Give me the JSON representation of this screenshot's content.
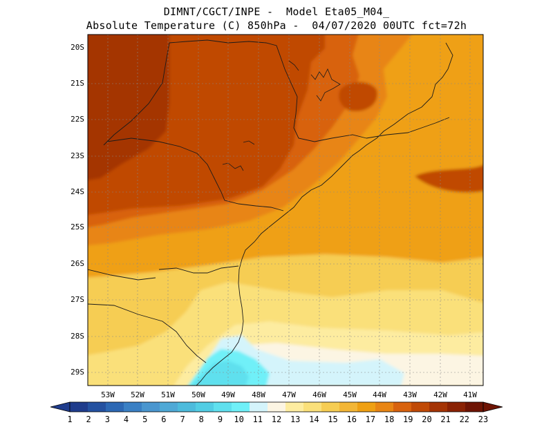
{
  "title": {
    "line1": "DIMNT/CGCT/INPE -  Model Eta05_M04_",
    "line2": "Absolute Temperature (C) 850hPa -  04/07/2020 00UTC fct=72h"
  },
  "map": {
    "region": "South-southeast Brazil",
    "lat_labels": [
      "20S",
      "21S",
      "22S",
      "23S",
      "24S",
      "25S",
      "26S",
      "27S",
      "28S",
      "29S"
    ],
    "lon_labels": [
      "53W",
      "52W",
      "51W",
      "50W",
      "49W",
      "48W",
      "47W",
      "46W",
      "45W",
      "44W",
      "43W",
      "42W",
      "41W"
    ]
  },
  "colorbar": {
    "labels": [
      "1",
      "2",
      "3",
      "4",
      "5",
      "6",
      "7",
      "8",
      "9",
      "10",
      "11",
      "12",
      "13",
      "14",
      "15",
      "16",
      "17",
      "18",
      "19",
      "20",
      "21",
      "22",
      "23"
    ],
    "colors": [
      "#1f3c8c",
      "#2451a0",
      "#2c68b4",
      "#3a80c4",
      "#4a96cf",
      "#4fa9d6",
      "#4dbbdc",
      "#52cde4",
      "#5fe0ee",
      "#6ff0f8",
      "#d4f4fb",
      "#fcf5e3",
      "#fdeca0",
      "#fae07a",
      "#f6cd53",
      "#f3b636",
      "#efa013",
      "#e88514",
      "#d8620e",
      "#c04a06",
      "#a43405",
      "#8a2204",
      "#6e1404"
    ]
  },
  "temperature_field": {
    "units": "C",
    "band_thresholds": [
      11,
      12,
      13,
      14,
      15,
      16,
      17,
      18,
      19,
      20,
      21
    ],
    "band_colors": [
      "#d4f4fb",
      "#fcf5e3",
      "#fdeca0",
      "#fae07a",
      "#f6cd53",
      "#f3b636",
      "#efa013",
      "#e88514",
      "#d8620e",
      "#c04a06",
      "#a43405"
    ]
  }
}
